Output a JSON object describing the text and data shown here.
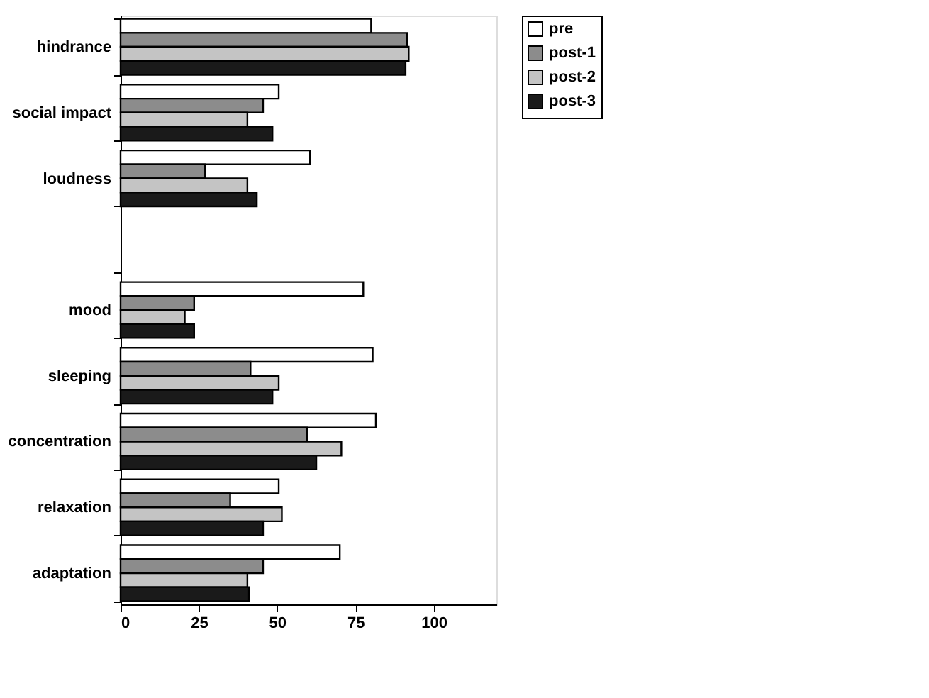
{
  "chart_data": {
    "type": "bar",
    "orientation": "horizontal",
    "categories": [
      "hindrance",
      "social impact",
      "loudness",
      null,
      "mood",
      "sleeping",
      "concentration",
      "relaxation",
      "adaptation"
    ],
    "series": [
      {
        "name": "pre",
        "color": "#ffffff",
        "values": [
          80,
          50.5,
          60.5,
          null,
          77.5,
          80.5,
          81.5,
          50.5,
          70
        ]
      },
      {
        "name": "post-1",
        "color": "#8c8c8c",
        "values": [
          91.5,
          45.5,
          27,
          null,
          23.5,
          41.5,
          59.5,
          35,
          45.5
        ]
      },
      {
        "name": "post-2",
        "color": "#c4c4c4",
        "values": [
          92,
          40.5,
          40.5,
          null,
          20.5,
          50.5,
          70.5,
          51.5,
          40.5
        ]
      },
      {
        "name": "post-3",
        "color": "#1a1a1a",
        "values": [
          91,
          48.5,
          43.5,
          null,
          23.5,
          48.5,
          62.5,
          45.5,
          41
        ]
      }
    ],
    "xlim": [
      0,
      120
    ],
    "xticks": [
      0,
      25,
      50,
      75,
      100
    ],
    "grid": false,
    "legend": "right"
  }
}
